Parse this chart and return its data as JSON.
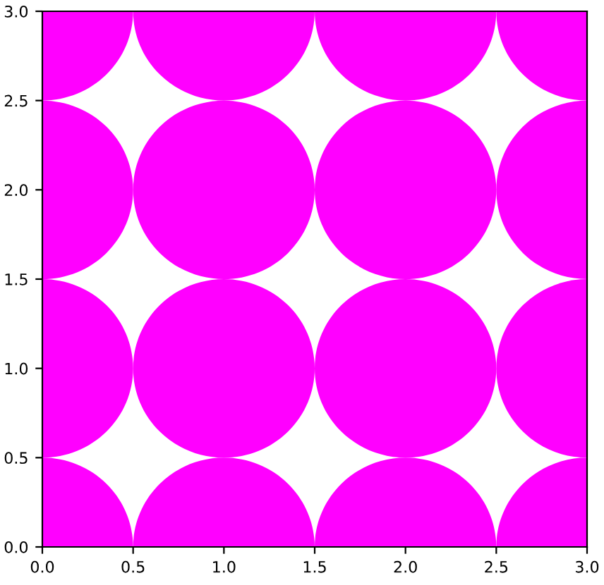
{
  "chart_data": {
    "type": "bubble",
    "x": [
      0,
      1,
      2,
      3,
      0,
      1,
      2,
      3,
      0,
      1,
      2,
      3,
      0,
      1,
      2,
      3
    ],
    "values": [
      0,
      0,
      0,
      0,
      1,
      1,
      1,
      1,
      2,
      2,
      2,
      2,
      3,
      3,
      3,
      3
    ],
    "sizes": [
      1,
      1,
      1,
      1,
      1,
      1,
      1,
      1,
      1,
      1,
      1,
      1,
      1,
      1,
      1,
      1
    ],
    "color": "#ff00ff",
    "xlim": [
      0,
      3
    ],
    "ylim": [
      0,
      3
    ],
    "xticks": [
      {
        "value": 0,
        "label": "0.0"
      },
      {
        "value": 0.5,
        "label": "0.5"
      },
      {
        "value": 1,
        "label": "1.0"
      },
      {
        "value": 1.5,
        "label": "1.5"
      },
      {
        "value": 2,
        "label": "2.0"
      },
      {
        "value": 2.5,
        "label": "2.5"
      },
      {
        "value": 3,
        "label": "3.0"
      }
    ],
    "yticks": [
      {
        "value": 0,
        "label": "0.0"
      },
      {
        "value": 0.5,
        "label": "0.5"
      },
      {
        "value": 1,
        "label": "1.0"
      },
      {
        "value": 1.5,
        "label": "1.5"
      },
      {
        "value": 2,
        "label": "2.0"
      },
      {
        "value": 2.5,
        "label": "2.5"
      },
      {
        "value": 3,
        "label": "3.0"
      }
    ],
    "marker": "circle",
    "grid": false
  }
}
